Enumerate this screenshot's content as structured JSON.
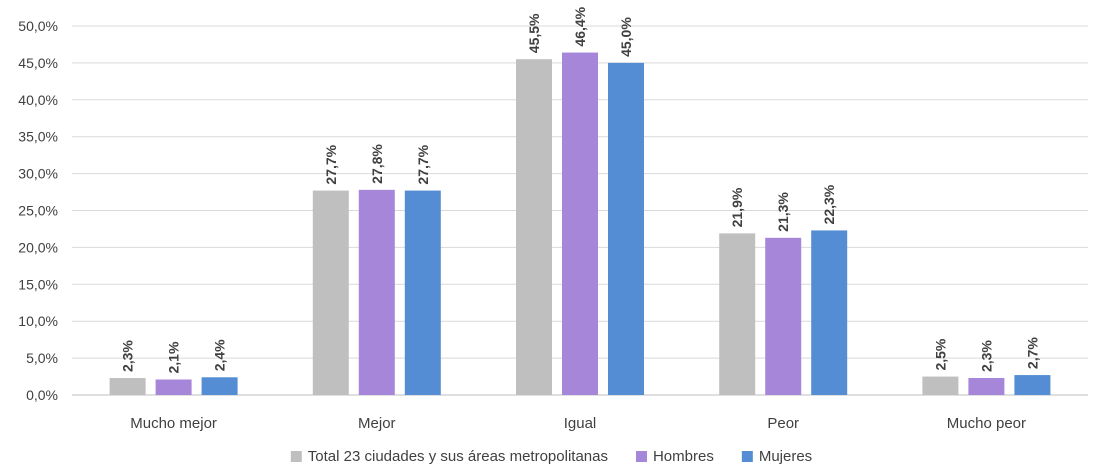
{
  "chart_data": {
    "type": "bar",
    "categories": [
      "Mucho mejor",
      "Mejor",
      "Igual",
      "Peor",
      "Mucho peor"
    ],
    "series": [
      {
        "name": "Total 23 ciudades y sus áreas metropolitanas",
        "values": [
          2.3,
          27.7,
          45.5,
          21.9,
          2.5
        ],
        "labels": [
          "2,3%",
          "27,7%",
          "45,5%",
          "21,9%",
          "2,5%"
        ],
        "color": "#bfbfbf"
      },
      {
        "name": "Hombres",
        "values": [
          2.1,
          27.8,
          46.4,
          21.3,
          2.3
        ],
        "labels": [
          "2,1%",
          "27,8%",
          "46,4%",
          "21,3%",
          "2,3%"
        ],
        "color": "#a686d9"
      },
      {
        "name": "Mujeres",
        "values": [
          2.4,
          27.7,
          45.0,
          22.3,
          2.7
        ],
        "labels": [
          "2,4%",
          "27,7%",
          "45,0%",
          "22,3%",
          "2,7%"
        ],
        "color": "#548dd4"
      }
    ],
    "ylim": [
      0,
      50
    ],
    "yticks": [
      0,
      5,
      10,
      15,
      20,
      25,
      30,
      35,
      40,
      45,
      50
    ],
    "ytick_labels": [
      "0,0%",
      "5,0%",
      "10,0%",
      "15,0%",
      "20,0%",
      "25,0%",
      "30,0%",
      "35,0%",
      "40,0%",
      "45,0%",
      "50,0%"
    ],
    "grid": true,
    "legend_position": "bottom"
  }
}
